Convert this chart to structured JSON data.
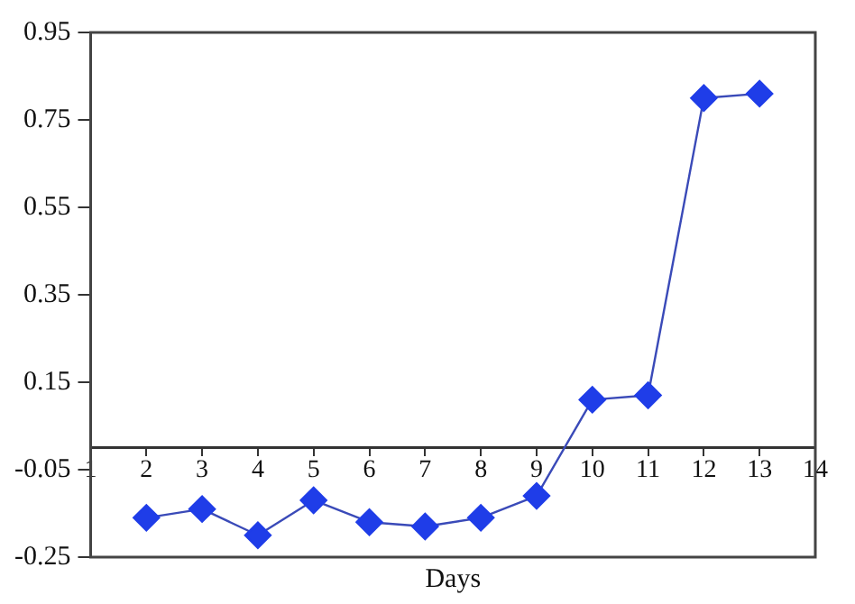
{
  "chart_data": {
    "type": "line",
    "xlabel": "Days",
    "x": [
      2,
      3,
      4,
      5,
      6,
      7,
      8,
      9,
      10,
      11,
      12,
      13
    ],
    "series": [
      {
        "color": "#1f3de8",
        "values": [
          -0.16,
          -0.14,
          -0.2,
          -0.12,
          -0.17,
          -0.18,
          -0.16,
          -0.11,
          0.11,
          0.12,
          0.8,
          0.81
        ]
      }
    ],
    "xlim": [
      1,
      14
    ],
    "xticks": [
      1,
      2,
      3,
      4,
      5,
      6,
      7,
      8,
      9,
      10,
      11,
      12,
      13,
      14
    ],
    "ylim": [
      -0.25,
      0.95
    ],
    "yticks": [
      -0.25,
      -0.05,
      0.15,
      0.35,
      0.55,
      0.75,
      0.95
    ],
    "grid": false,
    "legend": false,
    "marker": "diamond",
    "line_style": "solid"
  }
}
